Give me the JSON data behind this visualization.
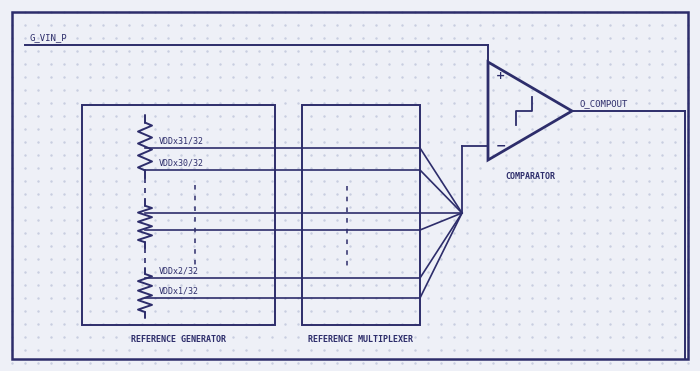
{
  "bg_color": "#eef0f7",
  "line_color": "#2d2d6b",
  "g_vin_p_label": "G_VIN_P",
  "o_compout_label": "O_COMPOUT",
  "comparator_label": "COMPARATOR",
  "ref_gen_label": "REFERENCE GENERATOR",
  "ref_mux_label": "REFERENCE MULTIPLEXER",
  "tap_labels": [
    "VDDx31/32",
    "VDDx30/32",
    "VDDx2/32",
    "VDDx1/32"
  ],
  "font_size_label": 6.5,
  "font_size_block": 6.0,
  "dot_color": "#c8cee0"
}
